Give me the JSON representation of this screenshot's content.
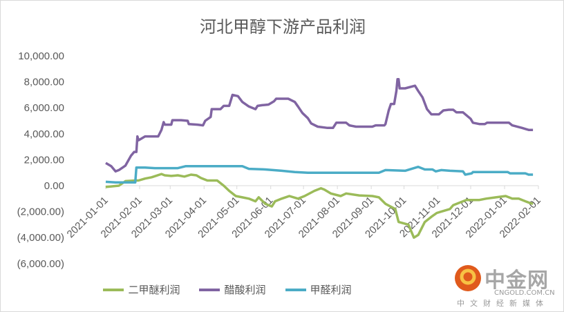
{
  "chart_data": {
    "type": "line",
    "title": "河北甲醇下游产品利润",
    "x_unit": "days since 2021-01-01",
    "xlim": [
      0,
      396
    ],
    "ylim": [
      -6000,
      10000
    ],
    "yticks": [
      10000,
      8000,
      6000,
      4000,
      2000,
      0,
      -2000,
      -4000,
      -6000
    ],
    "ytick_labels": [
      "10,000.00",
      "8,000.00",
      "6,000.00",
      "4,000.00",
      "2,000.00",
      "0.00",
      "(2,000.00)",
      "(4,000.00)",
      "(6,000.00)"
    ],
    "xtick_days": [
      0,
      31,
      59,
      90,
      120,
      151,
      181,
      212,
      243,
      273,
      304,
      334,
      365,
      396
    ],
    "xtick_labels": [
      "2021-01-01",
      "2021-02-01",
      "2021-03-01",
      "2021-04-01",
      "2021-05-01",
      "2021-06-01",
      "2021-07-01",
      "2021-08-01",
      "2021-09-01",
      "2021-10-01",
      "2021-11-01",
      "2021-12-01",
      "2022-01-01",
      "2022-02-01"
    ],
    "legend_position": "bottom",
    "series": [
      {
        "name": "二甲醚利润",
        "color": "#9BBB59",
        "points": [
          [
            0,
            -100
          ],
          [
            12,
            0
          ],
          [
            18,
            350
          ],
          [
            27,
            400
          ],
          [
            30,
            400
          ],
          [
            36,
            550
          ],
          [
            42,
            650
          ],
          [
            51,
            900
          ],
          [
            54,
            800
          ],
          [
            60,
            750
          ],
          [
            66,
            800
          ],
          [
            72,
            700
          ],
          [
            78,
            850
          ],
          [
            83,
            800
          ],
          [
            87,
            600
          ],
          [
            93,
            400
          ],
          [
            102,
            400
          ],
          [
            108,
            0
          ],
          [
            113,
            -400
          ],
          [
            119,
            -800
          ],
          [
            125,
            -900
          ],
          [
            131,
            -1000
          ],
          [
            137,
            -1200
          ],
          [
            140,
            -900
          ],
          [
            146,
            -1400
          ],
          [
            152,
            -1600
          ],
          [
            155,
            -1200
          ],
          [
            161,
            -1000
          ],
          [
            168,
            -800
          ],
          [
            176,
            -1000
          ],
          [
            182,
            -800
          ],
          [
            191,
            -400
          ],
          [
            197,
            -200
          ],
          [
            200,
            -300
          ],
          [
            206,
            -600
          ],
          [
            215,
            -800
          ],
          [
            220,
            -600
          ],
          [
            232,
            -750
          ],
          [
            244,
            -800
          ],
          [
            250,
            -900
          ],
          [
            256,
            -1400
          ],
          [
            265,
            -1800
          ],
          [
            268,
            -2800
          ],
          [
            277,
            -3000
          ],
          [
            282,
            -4000
          ],
          [
            286,
            -3800
          ],
          [
            292,
            -2800
          ],
          [
            298,
            -2400
          ],
          [
            303,
            -2100
          ],
          [
            315,
            -1800
          ],
          [
            318,
            -1500
          ],
          [
            330,
            -1100
          ],
          [
            342,
            -1100
          ],
          [
            348,
            -1000
          ],
          [
            357,
            -900
          ],
          [
            366,
            -800
          ],
          [
            372,
            -1000
          ],
          [
            378,
            -1000
          ],
          [
            387,
            -1300
          ],
          [
            391,
            -1400
          ]
        ]
      },
      {
        "name": "醋酸利润",
        "color": "#8064A2",
        "points": [
          [
            0,
            1750
          ],
          [
            5,
            1500
          ],
          [
            9,
            1100
          ],
          [
            12,
            1200
          ],
          [
            18,
            1550
          ],
          [
            23,
            2300
          ],
          [
            26,
            2600
          ],
          [
            28,
            2600
          ],
          [
            29,
            3800
          ],
          [
            30,
            3500
          ],
          [
            36,
            3800
          ],
          [
            42,
            3800
          ],
          [
            48,
            3800
          ],
          [
            51,
            4300
          ],
          [
            53,
            4900
          ],
          [
            54,
            4700
          ],
          [
            60,
            4700
          ],
          [
            61,
            5050
          ],
          [
            69,
            5050
          ],
          [
            75,
            5000
          ],
          [
            76,
            4750
          ],
          [
            84,
            4700
          ],
          [
            89,
            4650
          ],
          [
            91,
            5000
          ],
          [
            96,
            5300
          ],
          [
            97,
            5900
          ],
          [
            105,
            5900
          ],
          [
            108,
            6150
          ],
          [
            113,
            6150
          ],
          [
            116,
            7000
          ],
          [
            121,
            6900
          ],
          [
            125,
            6450
          ],
          [
            131,
            6100
          ],
          [
            137,
            5900
          ],
          [
            139,
            6150
          ],
          [
            143,
            6200
          ],
          [
            149,
            6250
          ],
          [
            154,
            6500
          ],
          [
            156,
            6700
          ],
          [
            167,
            6700
          ],
          [
            173,
            6450
          ],
          [
            176,
            6100
          ],
          [
            180,
            5600
          ],
          [
            185,
            5200
          ],
          [
            188,
            4800
          ],
          [
            194,
            4550
          ],
          [
            203,
            4450
          ],
          [
            208,
            4450
          ],
          [
            211,
            4850
          ],
          [
            220,
            4850
          ],
          [
            223,
            4650
          ],
          [
            229,
            4550
          ],
          [
            244,
            4550
          ],
          [
            247,
            4650
          ],
          [
            255,
            4650
          ],
          [
            256,
            4750
          ],
          [
            259,
            5800
          ],
          [
            261,
            6300
          ],
          [
            264,
            6300
          ],
          [
            266,
            7300
          ],
          [
            267,
            8200
          ],
          [
            268,
            8200
          ],
          [
            269,
            7500
          ],
          [
            274,
            7500
          ],
          [
            283,
            7700
          ],
          [
            286,
            7300
          ],
          [
            290,
            6800
          ],
          [
            294,
            5900
          ],
          [
            298,
            5500
          ],
          [
            301,
            5500
          ],
          [
            305,
            5500
          ],
          [
            309,
            5800
          ],
          [
            314,
            5850
          ],
          [
            318,
            5850
          ],
          [
            321,
            5650
          ],
          [
            327,
            5650
          ],
          [
            334,
            5150
          ],
          [
            336,
            4850
          ],
          [
            342,
            4750
          ],
          [
            347,
            4750
          ],
          [
            349,
            4850
          ],
          [
            369,
            4850
          ],
          [
            372,
            4650
          ],
          [
            381,
            4450
          ],
          [
            387,
            4300
          ],
          [
            391,
            4300
          ]
        ]
      },
      {
        "name": "甲醛利润",
        "color": "#4BACC6",
        "points": [
          [
            0,
            300
          ],
          [
            9,
            250
          ],
          [
            27,
            250
          ],
          [
            28,
            1400
          ],
          [
            36,
            1400
          ],
          [
            45,
            1350
          ],
          [
            66,
            1350
          ],
          [
            73,
            1500
          ],
          [
            125,
            1500
          ],
          [
            131,
            1300
          ],
          [
            146,
            1250
          ],
          [
            161,
            1150
          ],
          [
            173,
            1050
          ],
          [
            185,
            1000
          ],
          [
            250,
            1000
          ],
          [
            256,
            1200
          ],
          [
            274,
            1150
          ],
          [
            286,
            1450
          ],
          [
            292,
            1250
          ],
          [
            299,
            1250
          ],
          [
            302,
            1100
          ],
          [
            307,
            1200
          ],
          [
            315,
            1150
          ],
          [
            327,
            1100
          ],
          [
            329,
            850
          ],
          [
            335,
            950
          ],
          [
            336,
            1050
          ],
          [
            368,
            1050
          ],
          [
            370,
            950
          ],
          [
            384,
            950
          ],
          [
            387,
            850
          ],
          [
            391,
            850
          ]
        ]
      }
    ]
  },
  "logo": {
    "name": "中金网",
    "domain": "CNGOLD.COM.CN",
    "tagline": "中文财经新媒体"
  }
}
